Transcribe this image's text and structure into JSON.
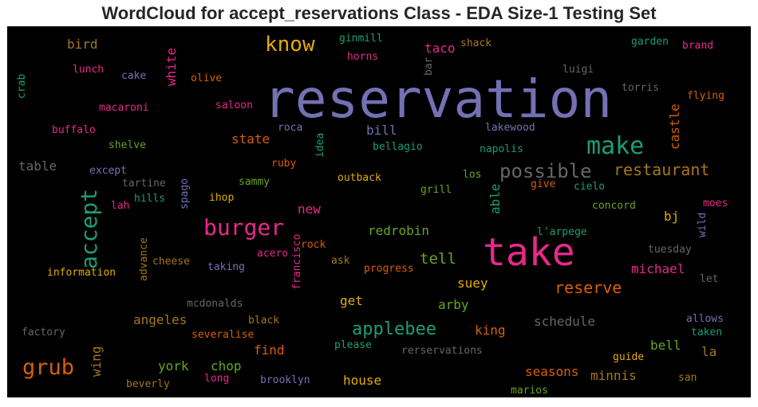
{
  "chart_data": {
    "type": "wordcloud",
    "title": "WordCloud for accept_reservations Class - EDA Size-1 Testing Set",
    "background": "#000000",
    "colormap": "Dark2",
    "words": [
      {
        "text": "reservation",
        "color": "#7570b3"
      },
      {
        "text": "take",
        "color": "#e7298a"
      },
      {
        "text": "make",
        "color": "#1b9e77"
      },
      {
        "text": "know",
        "color": "#e6ab02"
      },
      {
        "text": "burger",
        "color": "#e7298a"
      },
      {
        "text": "accept",
        "color": "#1b9e77"
      },
      {
        "text": "possible",
        "color": "#666666"
      },
      {
        "text": "restaurant",
        "color": "#a6761d"
      },
      {
        "text": "grub",
        "color": "#d95f02"
      },
      {
        "text": "applebee",
        "color": "#1b9e77"
      },
      {
        "text": "reserve",
        "color": "#d95f02"
      },
      {
        "text": "tell",
        "color": "#66a61e"
      },
      {
        "text": "bird",
        "color": "#a6761d"
      },
      {
        "text": "white",
        "color": "#e7298a"
      },
      {
        "text": "state",
        "color": "#d95f02"
      },
      {
        "text": "bill",
        "color": "#7570b3"
      },
      {
        "text": "castle",
        "color": "#d95f02"
      },
      {
        "text": "table",
        "color": "#666666"
      },
      {
        "text": "taco",
        "color": "#e7298a"
      },
      {
        "text": "new",
        "color": "#e7298a"
      },
      {
        "text": "redrobin",
        "color": "#66a61e"
      },
      {
        "text": "michael",
        "color": "#e7298a"
      },
      {
        "text": "able",
        "color": "#1b9e77"
      },
      {
        "text": "bj",
        "color": "#e6ab02"
      },
      {
        "text": "suey",
        "color": "#e6ab02"
      },
      {
        "text": "get",
        "color": "#e6ab02"
      },
      {
        "text": "arby",
        "color": "#66a61e"
      },
      {
        "text": "angeles",
        "color": "#a6761d"
      },
      {
        "text": "king",
        "color": "#d95f02"
      },
      {
        "text": "schedule",
        "color": "#666666"
      },
      {
        "text": "bell",
        "color": "#66a61e"
      },
      {
        "text": "find",
        "color": "#d95f02"
      },
      {
        "text": "wing",
        "color": "#a6761d"
      },
      {
        "text": "york",
        "color": "#66a61e"
      },
      {
        "text": "chop",
        "color": "#66a61e"
      },
      {
        "text": "house",
        "color": "#e6ab02"
      },
      {
        "text": "seasons",
        "color": "#d95f02"
      },
      {
        "text": "minnis",
        "color": "#a6761d"
      },
      {
        "text": "la",
        "color": "#a6761d"
      },
      {
        "text": "lunch",
        "color": "#e7298a"
      },
      {
        "text": "cake",
        "color": "#7570b3"
      },
      {
        "text": "olive",
        "color": "#d95f02"
      },
      {
        "text": "ginmill",
        "color": "#1b9e77"
      },
      {
        "text": "shack",
        "color": "#a6761d"
      },
      {
        "text": "garden",
        "color": "#1b9e77"
      },
      {
        "text": "brand",
        "color": "#e7298a"
      },
      {
        "text": "horns",
        "color": "#e7298a"
      },
      {
        "text": "bar",
        "color": "#666666"
      },
      {
        "text": "luigi",
        "color": "#666666"
      },
      {
        "text": "torris",
        "color": "#666666"
      },
      {
        "text": "flying",
        "color": "#d95f02"
      },
      {
        "text": "crab",
        "color": "#1b9e77"
      },
      {
        "text": "macaroni",
        "color": "#e7298a"
      },
      {
        "text": "saloon",
        "color": "#e7298a"
      },
      {
        "text": "buffalo",
        "color": "#e7298a"
      },
      {
        "text": "roca",
        "color": "#7570b3"
      },
      {
        "text": "lakewood",
        "color": "#7570b3"
      },
      {
        "text": "shelve",
        "color": "#66a61e"
      },
      {
        "text": "bellagio",
        "color": "#1b9e77"
      },
      {
        "text": "napolis",
        "color": "#1b9e77"
      },
      {
        "text": "idea",
        "color": "#1b9e77"
      },
      {
        "text": "except",
        "color": "#7570b3"
      },
      {
        "text": "tartine",
        "color": "#666666"
      },
      {
        "text": "ruby",
        "color": "#d95f02"
      },
      {
        "text": "sammy",
        "color": "#66a61e"
      },
      {
        "text": "outback",
        "color": "#e6ab02"
      },
      {
        "text": "los",
        "color": "#66a61e"
      },
      {
        "text": "cielo",
        "color": "#1b9e77"
      },
      {
        "text": "give",
        "color": "#d95f02"
      },
      {
        "text": "hills",
        "color": "#1b9e77"
      },
      {
        "text": "spago",
        "color": "#7570b3"
      },
      {
        "text": "ihop",
        "color": "#e6ab02"
      },
      {
        "text": "grill",
        "color": "#66a61e"
      },
      {
        "text": "lah",
        "color": "#e7298a"
      },
      {
        "text": "concord",
        "color": "#66a61e"
      },
      {
        "text": "moes",
        "color": "#e7298a"
      },
      {
        "text": "wild",
        "color": "#7570b3"
      },
      {
        "text": "l'arpege",
        "color": "#1b9e77"
      },
      {
        "text": "rock",
        "color": "#d95f02"
      },
      {
        "text": "advance",
        "color": "#a6761d"
      },
      {
        "text": "acero",
        "color": "#e7298a"
      },
      {
        "text": "tuesday",
        "color": "#666666"
      },
      {
        "text": "cheese",
        "color": "#a6761d"
      },
      {
        "text": "taking",
        "color": "#7570b3"
      },
      {
        "text": "ask",
        "color": "#a6761d"
      },
      {
        "text": "progress",
        "color": "#d95f02"
      },
      {
        "text": "francisco",
        "color": "#e7298a"
      },
      {
        "text": "information",
        "color": "#e6ab02"
      },
      {
        "text": "let",
        "color": "#666666"
      },
      {
        "text": "mcdonalds",
        "color": "#666666"
      },
      {
        "text": "black",
        "color": "#a6761d"
      },
      {
        "text": "allows",
        "color": "#7570b3"
      },
      {
        "text": "taken",
        "color": "#1b9e77"
      },
      {
        "text": "factory",
        "color": "#666666"
      },
      {
        "text": "severalise",
        "color": "#d95f02"
      },
      {
        "text": "please",
        "color": "#1b9e77"
      },
      {
        "text": "rerservations",
        "color": "#666666"
      },
      {
        "text": "guide",
        "color": "#e6ab02"
      },
      {
        "text": "long",
        "color": "#e7298a"
      },
      {
        "text": "brooklyn",
        "color": "#7570b3"
      },
      {
        "text": "beverly",
        "color": "#a6761d"
      },
      {
        "text": "san",
        "color": "#a6761d"
      },
      {
        "text": "marios",
        "color": "#66a61e"
      }
    ]
  }
}
